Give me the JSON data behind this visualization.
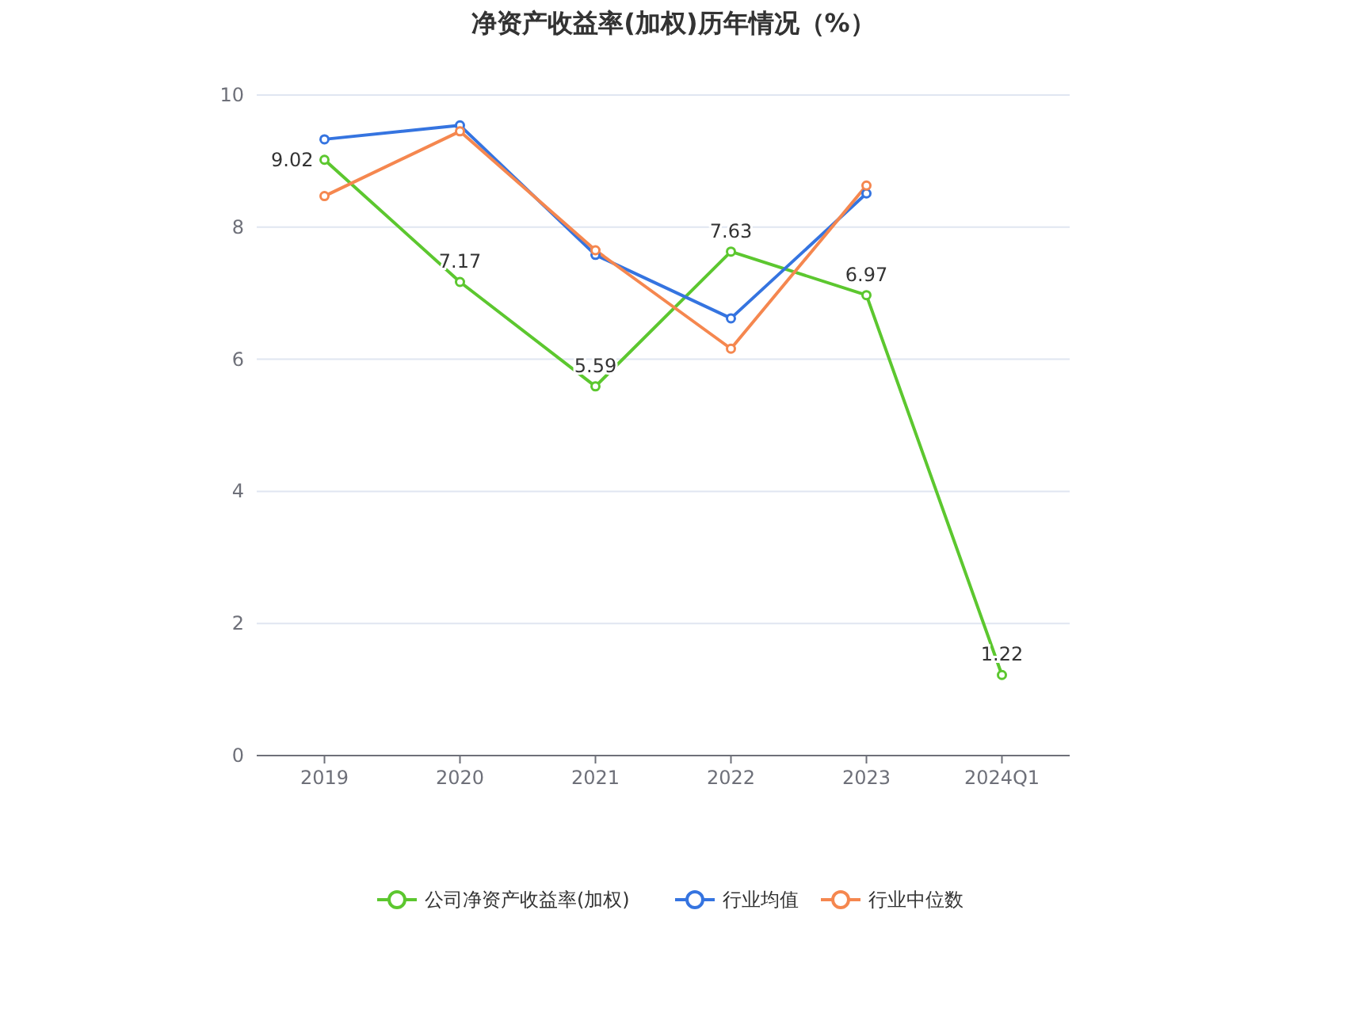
{
  "chart_data": {
    "type": "line",
    "title": "净资产收益率(加权)历年情况（%）",
    "categories": [
      "2019",
      "2020",
      "2021",
      "2022",
      "2023",
      "2024Q1"
    ],
    "series": [
      {
        "name": "公司净资产收益率(加权)",
        "color": "#5cc72f",
        "values": [
          9.02,
          7.17,
          5.59,
          7.63,
          6.97,
          1.22
        ],
        "value_labels": [
          "9.02",
          "7.17",
          "5.59",
          "7.63",
          "6.97",
          "1.22"
        ]
      },
      {
        "name": "行业均值",
        "color": "#3574e0",
        "values": [
          9.33,
          9.54,
          7.58,
          6.62,
          8.51,
          null
        ]
      },
      {
        "name": "行业中位数",
        "color": "#f5874f",
        "values": [
          8.47,
          9.45,
          7.65,
          6.16,
          8.63,
          null
        ]
      }
    ],
    "ylim": [
      0,
      10
    ],
    "yticks": [
      0,
      2,
      4,
      6,
      8,
      10
    ],
    "grid": "y",
    "legend": "bottom",
    "marker": "circle",
    "line_style": "solid"
  }
}
